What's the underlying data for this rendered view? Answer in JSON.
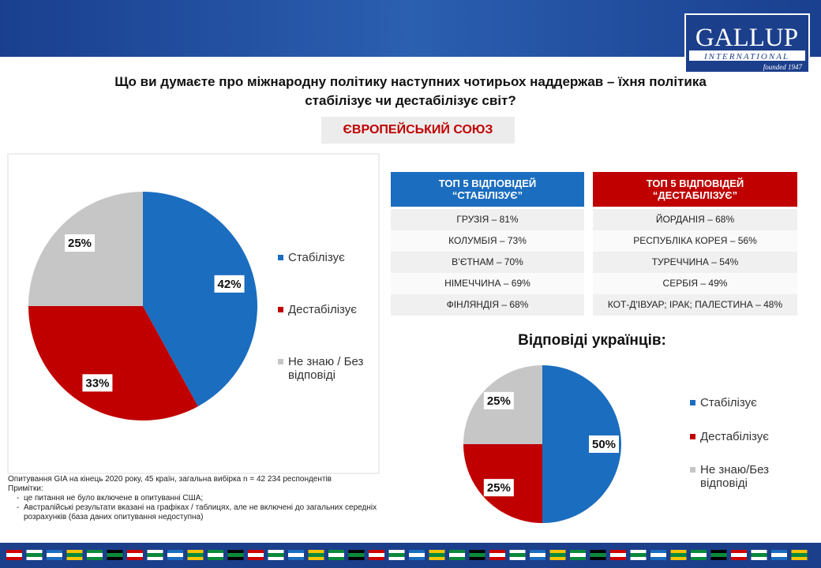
{
  "header": {
    "title_lines": [
      "Що ви думаєте про міжнародну політику наступних чотирьох наддержав – їхня політика",
      "стабілізує чи дестабілізує світ?"
    ],
    "subtitle": "ЄВРОПЕЙСЬКИЙ СОЮЗ",
    "logo": "GALLUP",
    "logo_sub": "INTERNATIONAL",
    "founded": "founded 1947"
  },
  "chart_data": [
    {
      "type": "pie",
      "categories": [
        "Стабілізує",
        "Дестабілізує",
        "Не знаю / Без відповіді"
      ],
      "values": [
        42,
        33,
        25
      ],
      "value_labels": [
        "42%",
        "33%",
        "25%"
      ],
      "colors": [
        "#1b6dbf",
        "#c00000",
        "#c6c6c6"
      ]
    },
    {
      "type": "pie",
      "title": "Відповіді українців:",
      "categories": [
        "Стабілізує",
        "Дестабілізує",
        "Не знаю/Без відповіді"
      ],
      "values": [
        50,
        25,
        25
      ],
      "value_labels": [
        "50%",
        "25%",
        "25%"
      ],
      "colors": [
        "#1b6dbf",
        "#c00000",
        "#c6c6c6"
      ]
    }
  ],
  "tables": [
    {
      "header": [
        "ТОП 5 ВІДПОВІДЕЙ",
        "“СТАБІЛІЗУЄ”"
      ],
      "color": "#1b6dbf",
      "rows": [
        "ГРУЗІЯ – 81%",
        "КОЛУМБІЯ – 73%",
        "В’ЄТНАМ – 70%",
        "НІМЕЧЧИНА – 69%",
        "ФІНЛЯНДІЯ – 68%"
      ]
    },
    {
      "header": [
        "ТОП 5 ВІДПОВІДЕЙ",
        "“ДЕСТАБІЛІЗУЄ”"
      ],
      "color": "#c00000",
      "rows": [
        "ЙОРДАНІЯ – 68%",
        "РЕСПУБЛІКА КОРЕЯ – 56%",
        "ТУРЕЧЧИНА – 54%",
        "СЕРБІЯ – 49%",
        "КОТ-Д'ІВУАР; ІРАК; ПАЛЕСТИНА – 48%"
      ]
    }
  ],
  "notes": {
    "survey": "Опитування GIA на кінець 2020 року, 45 країн, загальна вибірка n = 42 234 респондентів",
    "heading": "Примітки:",
    "items": [
      "це питання не було включене в опитуванні США;",
      "Австралійські результати вказані на графіках / таблицях, але не включені до загальних середніх розрахунків (база даних опитування недоступна)"
    ]
  }
}
